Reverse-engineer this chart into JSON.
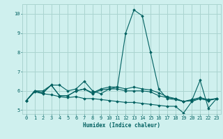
{
  "title": "",
  "xlabel": "Humidex (Indice chaleur)",
  "ylabel": "",
  "xlim": [
    -0.5,
    23.5
  ],
  "ylim": [
    4.8,
    10.5
  ],
  "yticks": [
    5,
    6,
    7,
    8,
    9,
    10
  ],
  "xticks": [
    0,
    1,
    2,
    3,
    4,
    5,
    6,
    7,
    8,
    9,
    10,
    11,
    12,
    13,
    14,
    15,
    16,
    17,
    18,
    19,
    20,
    21,
    22,
    23
  ],
  "background_color": "#cff0ee",
  "grid_color": "#aad4d0",
  "line_color": "#006060",
  "series": [
    [
      5.5,
      6.0,
      6.0,
      6.3,
      6.3,
      6.0,
      6.1,
      6.5,
      6.0,
      5.85,
      6.1,
      6.2,
      9.0,
      10.2,
      9.9,
      8.0,
      6.1,
      5.6,
      5.55,
      5.45,
      5.5,
      6.55,
      5.1,
      5.6
    ],
    [
      5.5,
      6.0,
      5.9,
      6.3,
      5.75,
      5.75,
      6.0,
      6.1,
      5.9,
      6.1,
      6.2,
      6.2,
      6.1,
      6.2,
      6.1,
      6.05,
      5.9,
      5.7,
      5.6,
      5.45,
      5.55,
      5.65,
      5.55,
      5.6
    ],
    [
      5.5,
      6.0,
      5.9,
      6.3,
      5.75,
      5.75,
      6.0,
      6.1,
      5.85,
      6.05,
      6.1,
      6.1,
      6.0,
      6.0,
      6.0,
      5.95,
      5.75,
      5.65,
      5.6,
      5.45,
      5.5,
      5.6,
      5.5,
      5.6
    ],
    [
      5.5,
      5.95,
      5.85,
      5.8,
      5.7,
      5.65,
      5.7,
      5.6,
      5.6,
      5.55,
      5.5,
      5.45,
      5.4,
      5.4,
      5.35,
      5.3,
      5.25,
      5.2,
      5.2,
      4.85,
      5.45,
      5.6,
      5.5,
      5.6
    ]
  ]
}
